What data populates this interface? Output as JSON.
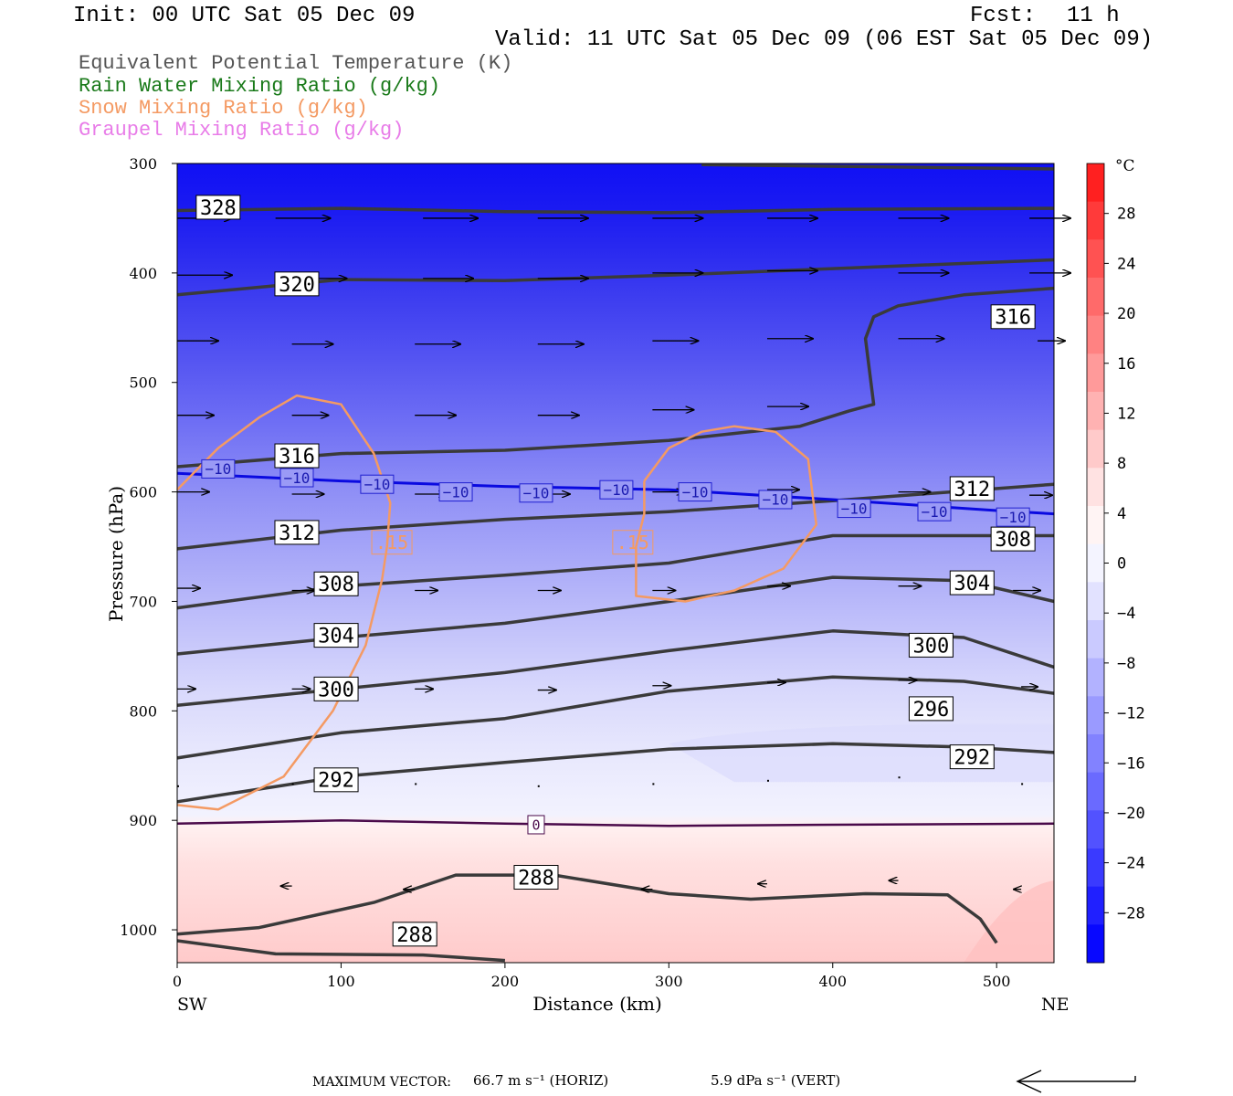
{
  "header": {
    "init": "Init: 00 UTC Sat 05 Dec 09",
    "fcst_label": "Fcst:",
    "fcst_value": "11 h",
    "valid": "Valid: 11 UTC Sat 05 Dec 09 (06 EST Sat 05 Dec 09)"
  },
  "legend": [
    {
      "text": "Equivalent Potential Temperature (K)",
      "color": "#555555"
    },
    {
      "text": "Rain Water Mixing Ratio (g/kg)",
      "color": "#1a7a1a"
    },
    {
      "text": "Snow Mixing Ratio (g/kg)",
      "color": "#f49a63"
    },
    {
      "text": "Graupel Mixing Ratio (g/kg)",
      "color": "#e87ce8"
    }
  ],
  "footer": {
    "max_vector_label": "MAXIMUM VECTOR:",
    "horiz": "66.7 m s⁻¹ (HORIZ)",
    "vert": "5.9 dPa s⁻¹ (VERT)"
  },
  "chart_data": {
    "type": "contour",
    "xlabel": "Distance (km)",
    "ylabel": "Pressure (hPa)",
    "xlim": [
      0,
      535
    ],
    "ylim": [
      1030,
      300
    ],
    "x_ticks": [
      0,
      100,
      200,
      300,
      400,
      500
    ],
    "y_ticks": [
      300,
      400,
      500,
      600,
      700,
      800,
      900,
      1000
    ],
    "x_end_labels": {
      "left": "SW",
      "right": "NE"
    },
    "colorbar": {
      "unit": "°C",
      "tick_labels": [
        "28",
        "24",
        "20",
        "16",
        "12",
        "8",
        "4",
        "0",
        "−4",
        "−8",
        "−12",
        "−16",
        "−20",
        "−24",
        "−28"
      ],
      "colors": [
        "#ff2020",
        "#ff3a3a",
        "#ff5252",
        "#ff6a6a",
        "#ff8282",
        "#ff9a9a",
        "#ffb2b2",
        "#ffcaca",
        "#ffe2e2",
        "#fff4f4",
        "#f4f4ff",
        "#e2e2ff",
        "#cacaff",
        "#b2b2ff",
        "#9a9aff",
        "#8282ff",
        "#6a6aff",
        "#5252ff",
        "#3a3aff",
        "#2020ff",
        "#0808ff"
      ]
    },
    "theta_e_contours": [
      {
        "label": "328",
        "points": [
          [
            0,
            343
          ],
          [
            100,
            341
          ],
          [
            200,
            344
          ],
          [
            300,
            345
          ],
          [
            400,
            342
          ],
          [
            535,
            341
          ]
        ]
      },
      {
        "label": "320",
        "points": [
          [
            0,
            420
          ],
          [
            100,
            406
          ],
          [
            200,
            407
          ],
          [
            300,
            402
          ],
          [
            400,
            396
          ],
          [
            535,
            388
          ]
        ]
      },
      {
        "label": "316",
        "points": [
          [
            0,
            577
          ],
          [
            100,
            565
          ],
          [
            200,
            562
          ],
          [
            300,
            553
          ],
          [
            380,
            540
          ],
          [
            410,
            526
          ],
          [
            425,
            520
          ],
          [
            420,
            460
          ],
          [
            425,
            440
          ],
          [
            440,
            430
          ],
          [
            480,
            420
          ],
          [
            535,
            414
          ]
        ]
      },
      {
        "label": "312",
        "points": [
          [
            0,
            652
          ],
          [
            100,
            635
          ],
          [
            200,
            625
          ],
          [
            300,
            618
          ],
          [
            400,
            608
          ],
          [
            535,
            593
          ]
        ]
      },
      {
        "label": "308",
        "points": [
          [
            0,
            706
          ],
          [
            100,
            686
          ],
          [
            200,
            676
          ],
          [
            300,
            665
          ],
          [
            400,
            640
          ],
          [
            535,
            640
          ]
        ]
      },
      {
        "label": "304",
        "points": [
          [
            0,
            748
          ],
          [
            100,
            733
          ],
          [
            200,
            720
          ],
          [
            300,
            700
          ],
          [
            400,
            678
          ],
          [
            480,
            681
          ],
          [
            535,
            700
          ]
        ]
      },
      {
        "label": "300",
        "points": [
          [
            0,
            795
          ],
          [
            100,
            780
          ],
          [
            200,
            765
          ],
          [
            300,
            745
          ],
          [
            400,
            727
          ],
          [
            480,
            733
          ],
          [
            535,
            760
          ]
        ]
      },
      {
        "label": "296",
        "points": [
          [
            0,
            843
          ],
          [
            100,
            820
          ],
          [
            200,
            807
          ],
          [
            300,
            782
          ],
          [
            400,
            769
          ],
          [
            480,
            773
          ],
          [
            535,
            784
          ]
        ]
      },
      {
        "label": "292",
        "points": [
          [
            0,
            883
          ],
          [
            100,
            860
          ],
          [
            200,
            847
          ],
          [
            300,
            835
          ],
          [
            400,
            830
          ],
          [
            480,
            833
          ],
          [
            535,
            838
          ]
        ]
      },
      {
        "label": "288",
        "points": [
          [
            0,
            1004
          ],
          [
            50,
            998
          ],
          [
            120,
            975
          ],
          [
            170,
            950
          ],
          [
            230,
            950
          ],
          [
            300,
            967
          ],
          [
            350,
            972
          ],
          [
            420,
            967
          ],
          [
            470,
            968
          ],
          [
            490,
            990
          ],
          [
            500,
            1012
          ]
        ]
      },
      {
        "label": "288",
        "points": [
          [
            0,
            1010
          ],
          [
            60,
            1022
          ],
          [
            150,
            1023
          ],
          [
            200,
            1028
          ]
        ]
      }
    ],
    "isotherm_minus10": {
      "label": "-10",
      "points": [
        [
          0,
          583
        ],
        [
          100,
          590
        ],
        [
          200,
          595
        ],
        [
          300,
          598
        ],
        [
          400,
          607
        ],
        [
          500,
          617
        ],
        [
          535,
          620
        ]
      ]
    },
    "isotherm_0": {
      "label": "0",
      "points": [
        [
          0,
          903
        ],
        [
          100,
          900
        ],
        [
          200,
          903
        ],
        [
          300,
          905
        ],
        [
          400,
          904
        ],
        [
          535,
          903
        ]
      ]
    },
    "snow_contours": [
      {
        "label": ".15",
        "points": [
          [
            0,
            598
          ],
          [
            25,
            560
          ],
          [
            50,
            532
          ],
          [
            73,
            512
          ],
          [
            100,
            520
          ],
          [
            120,
            565
          ],
          [
            130,
            610
          ],
          [
            128,
            650
          ],
          [
            125,
            680
          ],
          [
            115,
            740
          ],
          [
            95,
            800
          ],
          [
            65,
            860
          ],
          [
            25,
            890
          ],
          [
            0,
            886
          ]
        ]
      },
      {
        "label": ".15",
        "points": [
          [
            285,
            590
          ],
          [
            300,
            560
          ],
          [
            320,
            545
          ],
          [
            340,
            540
          ],
          [
            365,
            545
          ],
          [
            385,
            570
          ],
          [
            390,
            630
          ],
          [
            370,
            670
          ],
          [
            340,
            690
          ],
          [
            310,
            700
          ],
          [
            280,
            695
          ],
          [
            280,
            650
          ],
          [
            285,
            620
          ],
          [
            285,
            590
          ]
        ]
      }
    ],
    "labels_thetae": [
      {
        "text": "328",
        "x": 25,
        "p": 340
      },
      {
        "text": "320",
        "x": 73,
        "p": 410
      },
      {
        "text": "316",
        "x": 73,
        "p": 567
      },
      {
        "text": "316",
        "x": 510,
        "p": 440
      },
      {
        "text": "312",
        "x": 73,
        "p": 637
      },
      {
        "text": "312",
        "x": 485,
        "p": 597
      },
      {
        "text": "308",
        "x": 97,
        "p": 684
      },
      {
        "text": "308",
        "x": 510,
        "p": 643
      },
      {
        "text": "304",
        "x": 97,
        "p": 731
      },
      {
        "text": "304",
        "x": 485,
        "p": 683
      },
      {
        "text": "300",
        "x": 97,
        "p": 780
      },
      {
        "text": "300",
        "x": 460,
        "p": 740
      },
      {
        "text": "296",
        "x": 460,
        "p": 798
      },
      {
        "text": "292",
        "x": 97,
        "p": 863
      },
      {
        "text": "292",
        "x": 485,
        "p": 842
      },
      {
        "text": "288",
        "x": 219,
        "p": 952
      },
      {
        "text": "288",
        "x": 145,
        "p": 1004
      }
    ],
    "labels_minus10": [
      {
        "text": "−10",
        "x": 25,
        "p": 579
      },
      {
        "text": "−10",
        "x": 73,
        "p": 587
      },
      {
        "text": "−10",
        "x": 122,
        "p": 593
      },
      {
        "text": "−10",
        "x": 170,
        "p": 600
      },
      {
        "text": "−10",
        "x": 219,
        "p": 601
      },
      {
        "text": "−10",
        "x": 268,
        "p": 598
      },
      {
        "text": "−10",
        "x": 316,
        "p": 600
      },
      {
        "text": "−10",
        "x": 365,
        "p": 607
      },
      {
        "text": "−10",
        "x": 413,
        "p": 615
      },
      {
        "text": "−10",
        "x": 462,
        "p": 618
      },
      {
        "text": "−10",
        "x": 510,
        "p": 623
      }
    ],
    "labels_snow": [
      {
        "text": ".15",
        "x": 131,
        "p": 646
      },
      {
        "text": ".15",
        "x": 278,
        "p": 646
      }
    ],
    "labels_zero": [
      {
        "text": "0",
        "x": 219,
        "p": 904
      }
    ],
    "vectors": [
      {
        "x": 0,
        "p": 350,
        "u": 60
      },
      {
        "x": 60,
        "p": 350,
        "u": 60
      },
      {
        "x": 150,
        "p": 350,
        "u": 60
      },
      {
        "x": 220,
        "p": 350,
        "u": 55
      },
      {
        "x": 290,
        "p": 350,
        "u": 55
      },
      {
        "x": 360,
        "p": 350,
        "u": 55
      },
      {
        "x": 440,
        "p": 350,
        "u": 55
      },
      {
        "x": 520,
        "p": 350,
        "u": 45
      },
      {
        "x": 0,
        "p": 402,
        "u": 60
      },
      {
        "x": 70,
        "p": 405,
        "u": 60
      },
      {
        "x": 150,
        "p": 405,
        "u": 55
      },
      {
        "x": 220,
        "p": 405,
        "u": 55
      },
      {
        "x": 290,
        "p": 400,
        "u": 55
      },
      {
        "x": 360,
        "p": 398,
        "u": 55
      },
      {
        "x": 440,
        "p": 400,
        "u": 55
      },
      {
        "x": 520,
        "p": 400,
        "u": 45
      },
      {
        "x": 0,
        "p": 462,
        "u": 45
      },
      {
        "x": 70,
        "p": 465,
        "u": 45
      },
      {
        "x": 145,
        "p": 465,
        "u": 50
      },
      {
        "x": 220,
        "p": 465,
        "u": 50
      },
      {
        "x": 290,
        "p": 462,
        "u": 50
      },
      {
        "x": 360,
        "p": 460,
        "u": 50
      },
      {
        "x": 440,
        "p": 460,
        "u": 50
      },
      {
        "x": 525,
        "p": 462,
        "u": 30
      },
      {
        "x": 0,
        "p": 530,
        "u": 40
      },
      {
        "x": 70,
        "p": 530,
        "u": 40
      },
      {
        "x": 145,
        "p": 530,
        "u": 45
      },
      {
        "x": 220,
        "p": 530,
        "u": 45
      },
      {
        "x": 290,
        "p": 525,
        "u": 45
      },
      {
        "x": 360,
        "p": 522,
        "u": 45
      },
      {
        "x": 0,
        "p": 600,
        "u": 35
      },
      {
        "x": 70,
        "p": 602,
        "u": 35
      },
      {
        "x": 145,
        "p": 602,
        "u": 35
      },
      {
        "x": 220,
        "p": 602,
        "u": 35
      },
      {
        "x": 290,
        "p": 600,
        "u": 35
      },
      {
        "x": 360,
        "p": 598,
        "u": 35
      },
      {
        "x": 440,
        "p": 600,
        "u": 35
      },
      {
        "x": 520,
        "p": 603,
        "u": 25
      },
      {
        "x": 0,
        "p": 688,
        "u": 25
      },
      {
        "x": 70,
        "p": 690,
        "u": 25
      },
      {
        "x": 145,
        "p": 690,
        "u": 25
      },
      {
        "x": 220,
        "p": 690,
        "u": 25
      },
      {
        "x": 290,
        "p": 690,
        "u": 25
      },
      {
        "x": 360,
        "p": 686,
        "u": 25
      },
      {
        "x": 440,
        "p": 686,
        "u": 25
      },
      {
        "x": 510,
        "p": 690,
        "u": 30
      },
      {
        "x": 0,
        "p": 780,
        "u": 20
      },
      {
        "x": 70,
        "p": 780,
        "u": 20
      },
      {
        "x": 145,
        "p": 780,
        "u": 20
      },
      {
        "x": 220,
        "p": 781,
        "u": 20
      },
      {
        "x": 290,
        "p": 777,
        "u": 20
      },
      {
        "x": 360,
        "p": 774,
        "u": 20
      },
      {
        "x": 440,
        "p": 772,
        "u": 20
      },
      {
        "x": 515,
        "p": 778,
        "u": 18
      },
      {
        "x": 0,
        "p": 868,
        "u": 1
      },
      {
        "x": 70,
        "p": 866,
        "u": 1
      },
      {
        "x": 145,
        "p": 866,
        "u": 1
      },
      {
        "x": 220,
        "p": 868,
        "u": 1
      },
      {
        "x": 290,
        "p": 866,
        "u": 1
      },
      {
        "x": 360,
        "p": 863,
        "u": 1
      },
      {
        "x": 440,
        "p": 860,
        "u": 1
      },
      {
        "x": 515,
        "p": 866,
        "u": 1
      },
      {
        "x": 70,
        "p": 960,
        "u": -12
      },
      {
        "x": 145,
        "p": 963,
        "u": -12
      },
      {
        "x": 290,
        "p": 963,
        "u": -12
      },
      {
        "x": 360,
        "p": 958,
        "u": -10
      },
      {
        "x": 440,
        "p": 955,
        "u": -10
      },
      {
        "x": 515,
        "p": 963,
        "u": -8
      }
    ]
  }
}
